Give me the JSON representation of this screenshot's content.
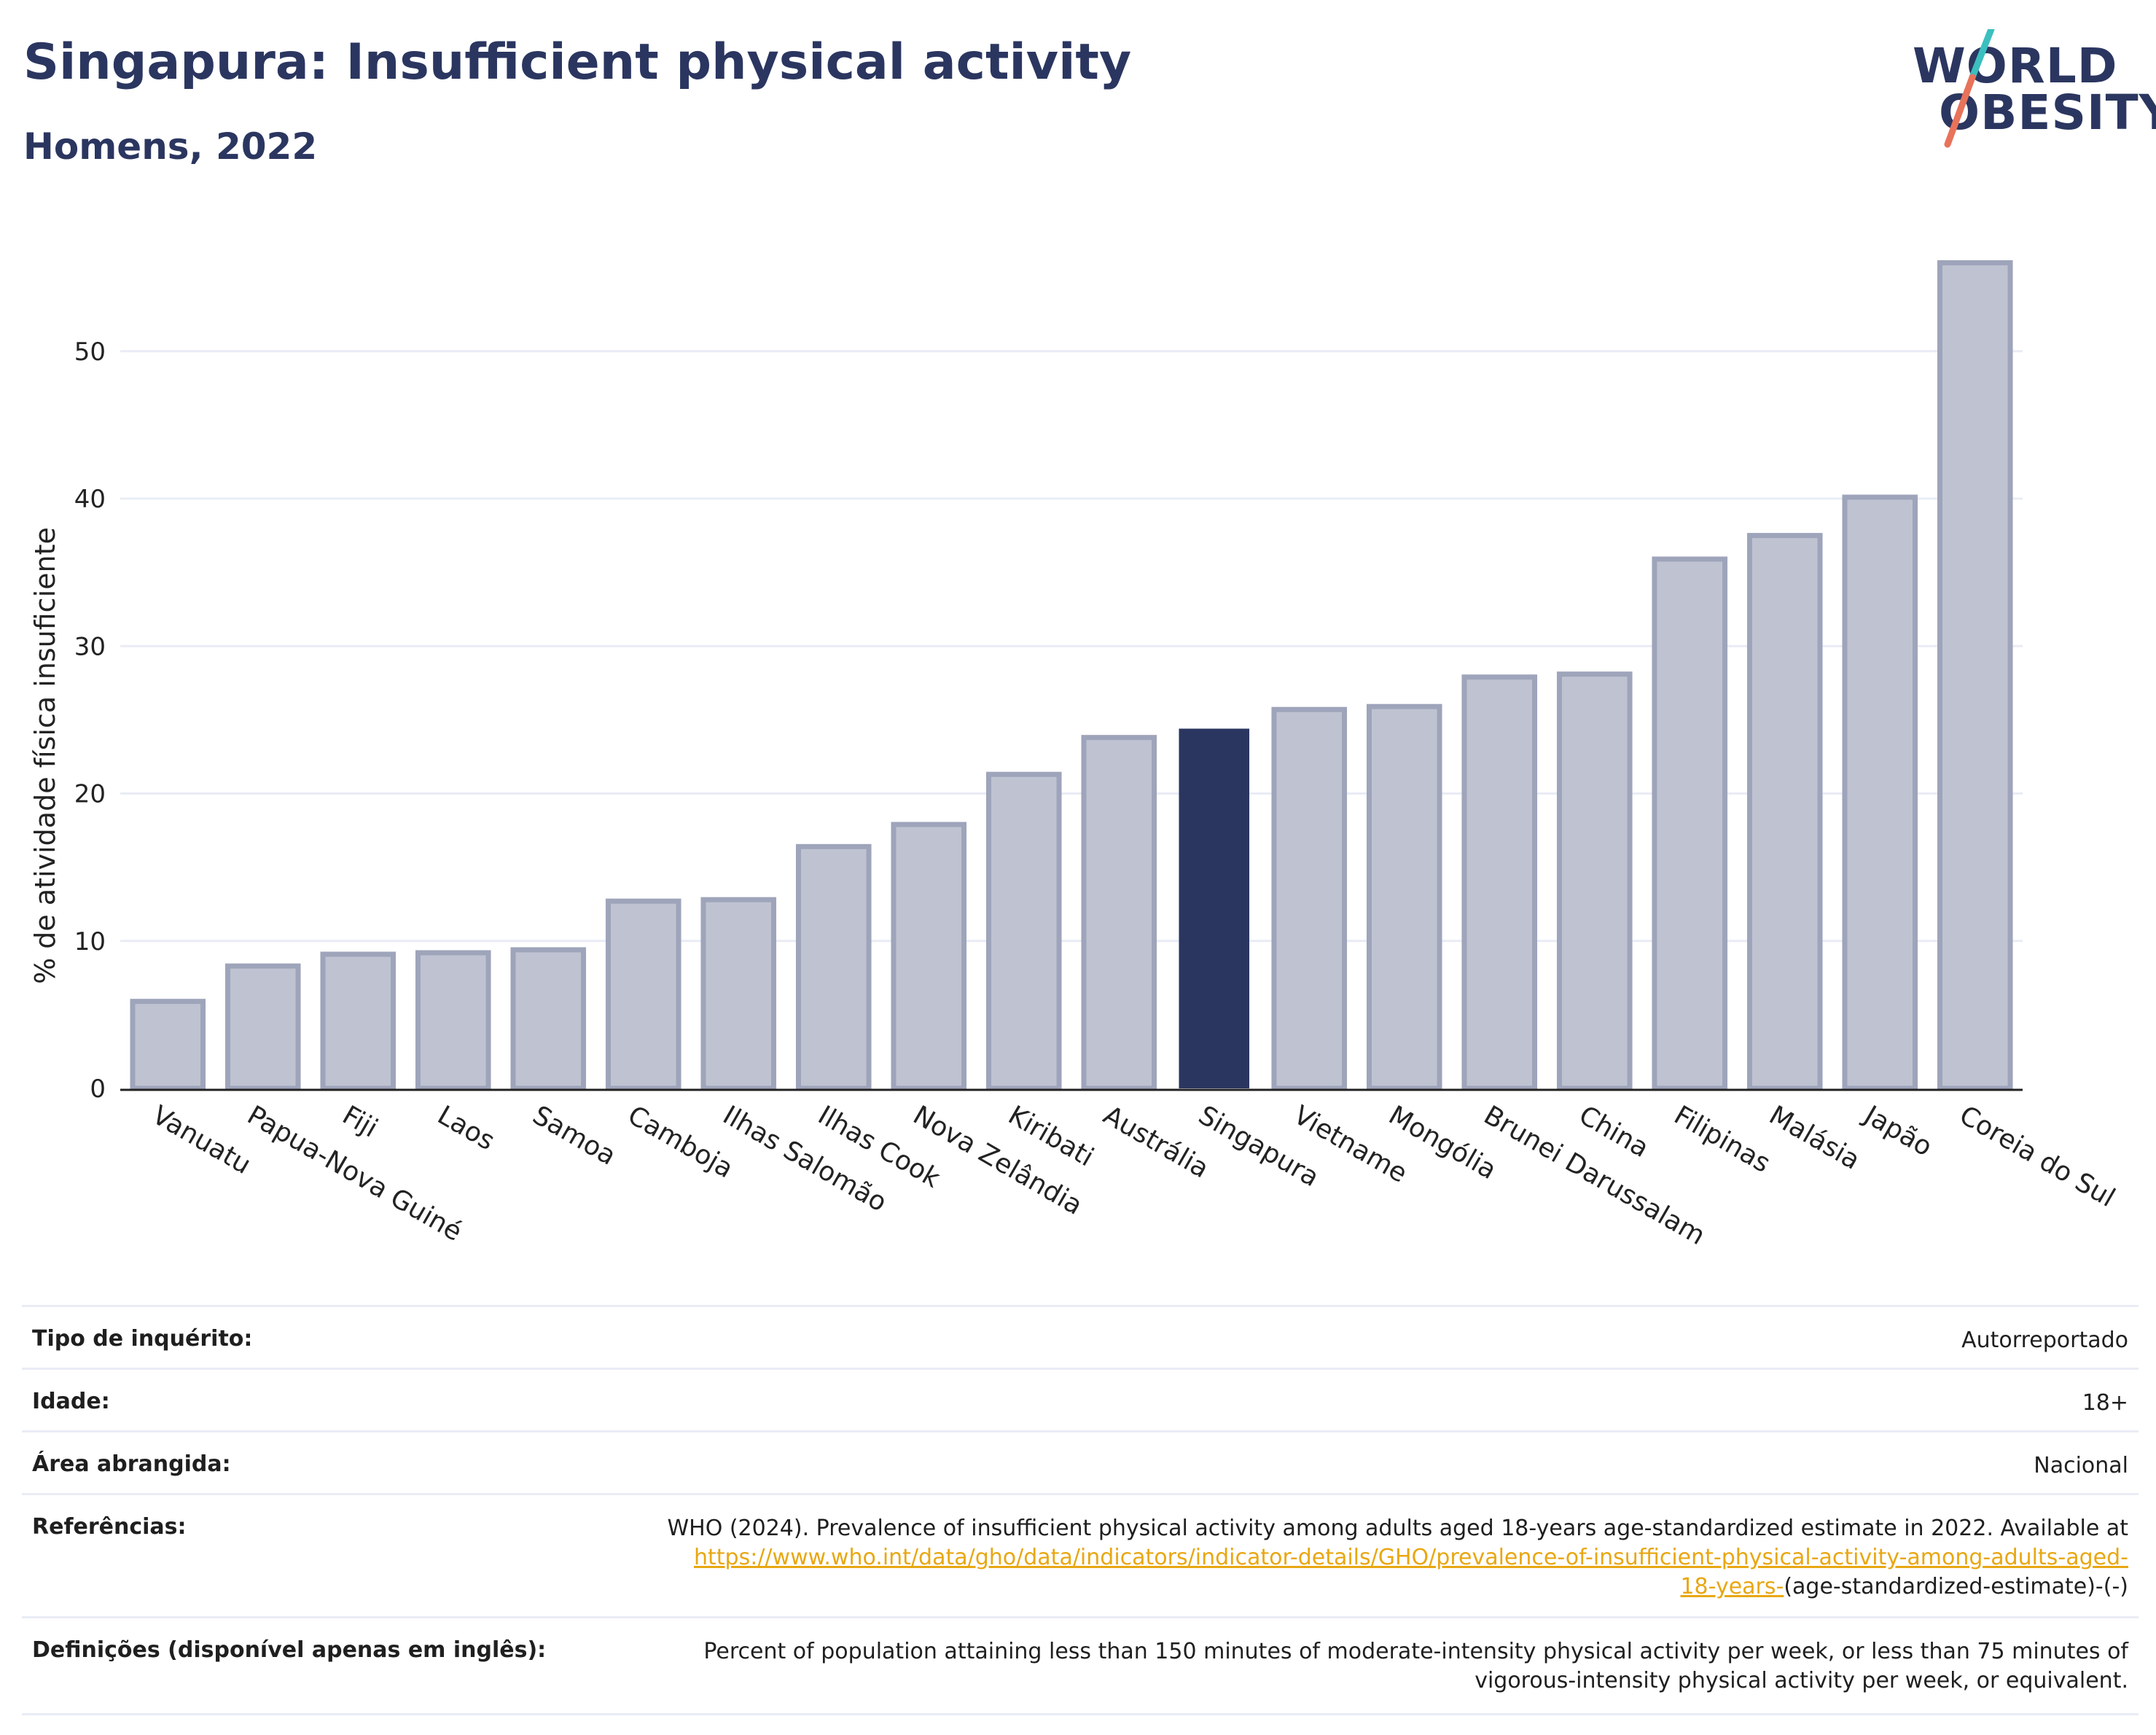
{
  "header": {
    "title": "Singapura: Insufficient physical activity",
    "subtitle": "Homens, 2022"
  },
  "logo": {
    "line1": "WORLD",
    "line2": "OBESITY",
    "colors": {
      "text": "#2b3660",
      "slash_top": "#3bbfbf",
      "slash_bottom": "#e8735a"
    }
  },
  "chart_data": {
    "type": "bar",
    "title": "",
    "xlabel": "",
    "ylabel": "% de atividade física insuficiente",
    "ylim": [
      0,
      58
    ],
    "yticks": [
      0,
      10,
      20,
      30,
      40,
      50
    ],
    "grid": true,
    "categories": [
      "Vanuatu",
      "Papua-Nova Guiné",
      "Fiji",
      "Laos",
      "Samoa",
      "Camboja",
      "Ilhas Salomão",
      "Ilhas Cook",
      "Nova Zelândia",
      "Kiribati",
      "Austrália",
      "Singapura",
      "Vietname",
      "Mongólia",
      "Brunei Darussalam",
      "China",
      "Filipinas",
      "Malásia",
      "Japão",
      "Coreia do Sul"
    ],
    "values": [
      5.9,
      8.3,
      9.1,
      9.2,
      9.4,
      12.7,
      12.8,
      16.4,
      17.9,
      21.3,
      23.8,
      24.4,
      25.7,
      25.9,
      27.9,
      28.1,
      35.9,
      37.5,
      40.1,
      56.0
    ],
    "highlight": "Singapura",
    "colors": {
      "bar": "#bfc3d1",
      "bar_edge": "#9ea4ba",
      "highlight": "#2b3660",
      "grid": "#e9ecf5"
    }
  },
  "table": {
    "survey_type": {
      "label": "Tipo de inquérito:",
      "value": "Autorreportado"
    },
    "age": {
      "label": "Idade:",
      "value": "18+"
    },
    "area": {
      "label": "Área abrangida:",
      "value": "Nacional"
    },
    "references": {
      "label": "Referências:",
      "text_before": "WHO (2024). Prevalence of insufficient physical activity among adults aged 18-years age-standardized estimate in 2022. Available at",
      "link_line1": "https://www.who.int/data/gho/data/indicators/indicator-details/GHO/prevalence-of-insufficient-physical-activity-among-adults-aged-",
      "link_line2": "18-years-",
      "text_after": "(age-standardized-estimate)-(-)"
    },
    "definitions": {
      "label": "Definições (disponível apenas em inglês):",
      "line1": "Percent of population attaining less than 150 minutes of moderate-intensity physical activity per week, or less than 75 minutes of",
      "line2": "vigorous-intensity physical activity per week, or equivalent."
    }
  }
}
